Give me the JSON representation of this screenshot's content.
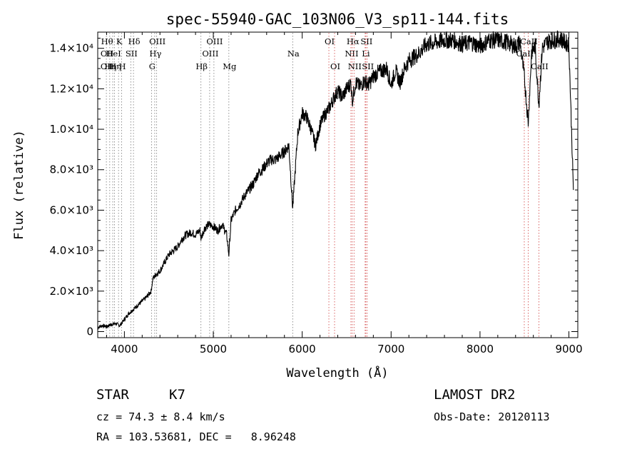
{
  "chart_data": {
    "type": "line",
    "title": "spec-55940-GAC_103N06_V3_sp11-144.fits",
    "xlabel": "Wavelength (Å)",
    "ylabel": "Flux (relative)",
    "xlim": [
      3700,
      9100
    ],
    "ylim": [
      -300,
      14800
    ],
    "x_ticks": [
      {
        "value": 4000,
        "label": "4000"
      },
      {
        "value": 5000,
        "label": "5000"
      },
      {
        "value": 6000,
        "label": "6000"
      },
      {
        "value": 7000,
        "label": "7000"
      },
      {
        "value": 8000,
        "label": "8000"
      },
      {
        "value": 9000,
        "label": "9000"
      }
    ],
    "y_ticks": [
      {
        "value": 0,
        "label": "0"
      },
      {
        "value": 2000,
        "label": "2.0×10³"
      },
      {
        "value": 4000,
        "label": "4.0×10³"
      },
      {
        "value": 6000,
        "label": "6.0×10³"
      },
      {
        "value": 8000,
        "label": "8.0×10³"
      },
      {
        "value": 10000,
        "label": "1.0×10⁴"
      },
      {
        "value": 12000,
        "label": "1.2×10⁴"
      },
      {
        "value": 14000,
        "label": "1.4×10⁴"
      }
    ],
    "grid": false,
    "series": [
      {
        "x": [
          3700,
          3750,
          3800,
          3850,
          3900,
          3950,
          4000,
          4050,
          4100,
          4150,
          4200,
          4250,
          4300,
          4320,
          4350,
          4400,
          4450,
          4500,
          4550,
          4600,
          4650,
          4700,
          4750,
          4800,
          4850,
          4861,
          4900,
          4950,
          5000,
          5050,
          5100,
          5150,
          5175,
          5200,
          5250,
          5300,
          5350,
          5400,
          5450,
          5500,
          5550,
          5600,
          5650,
          5700,
          5750,
          5800,
          5850,
          5893,
          5950,
          6000,
          6050,
          6100,
          6150,
          6200,
          6250,
          6300,
          6350,
          6400,
          6450,
          6500,
          6550,
          6563,
          6600,
          6650,
          6700,
          6750,
          6800,
          6850,
          6900,
          6950,
          7000,
          7050,
          7100,
          7150,
          7200,
          7300,
          7400,
          7500,
          7600,
          7700,
          7800,
          7900,
          8000,
          8100,
          8200,
          8300,
          8400,
          8450,
          8498,
          8542,
          8580,
          8620,
          8662,
          8700,
          8750,
          8800,
          8850,
          8900,
          8950,
          9000,
          9050
        ],
        "y": [
          200,
          300,
          250,
          350,
          400,
          300,
          600,
          900,
          1100,
          1300,
          1500,
          1700,
          2000,
          2600,
          2800,
          3000,
          3400,
          3800,
          4000,
          4200,
          4600,
          4800,
          4900,
          4800,
          5000,
          4600,
          5100,
          5300,
          5200,
          5000,
          5300,
          4800,
          3800,
          5500,
          6000,
          6300,
          6700,
          7000,
          7300,
          7800,
          8000,
          8300,
          8500,
          8500,
          8700,
          8900,
          9200,
          6100,
          9800,
          10800,
          10600,
          10000,
          9200,
          10200,
          10700,
          11000,
          11500,
          11900,
          11600,
          12000,
          12300,
          11400,
          12300,
          12100,
          12400,
          12200,
          12600,
          12800,
          12900,
          13000,
          12200,
          12900,
          12300,
          13000,
          13400,
          13700,
          14200,
          14300,
          14400,
          14400,
          14200,
          14300,
          14100,
          14400,
          14400,
          14300,
          14100,
          14300,
          12600,
          10300,
          13800,
          14100,
          11200,
          14000,
          14300,
          14400,
          14400,
          14500,
          14300,
          14200,
          7000
        ]
      }
    ],
    "line_marks": [
      {
        "x": 3797,
        "top": "Hθ",
        "mid": "OII",
        "bot": "OII"
      },
      {
        "x": 3835,
        "top": "",
        "mid": "",
        "bot": "Hη"
      },
      {
        "x": 3869,
        "top": "",
        "mid": "HeI",
        "bot": ""
      },
      {
        "x": 3889,
        "top": "",
        "mid": "",
        "bot": "Hη"
      },
      {
        "x": 3934,
        "top": "K",
        "mid": "",
        "bot": ""
      },
      {
        "x": 3969,
        "top": "",
        "mid": "",
        "bot": "H"
      },
      {
        "x": 4072,
        "top": "",
        "mid": "SII",
        "bot": ""
      },
      {
        "x": 4102,
        "top": "Hδ",
        "mid": "",
        "bot": ""
      },
      {
        "x": 4305,
        "top": "",
        "mid": "",
        "bot": "G"
      },
      {
        "x": 4341,
        "top": "",
        "mid": "Hγ",
        "bot": ""
      },
      {
        "x": 4363,
        "top": "OIII",
        "mid": "",
        "bot": ""
      },
      {
        "x": 4861,
        "top": "",
        "mid": "",
        "bot": "Hβ"
      },
      {
        "x": 4959,
        "top": "",
        "mid": "OIII",
        "bot": ""
      },
      {
        "x": 5007,
        "top": "OIII",
        "mid": "",
        "bot": ""
      },
      {
        "x": 5175,
        "top": "",
        "mid": "",
        "bot": "Mg"
      },
      {
        "x": 5893,
        "top": "",
        "mid": "Na",
        "bot": ""
      },
      {
        "x": 6300,
        "top": "OI",
        "mid": "",
        "bot": ""
      },
      {
        "x": 6364,
        "top": "",
        "mid": "",
        "bot": "OI"
      },
      {
        "x": 6548,
        "top": "",
        "mid": "NII",
        "bot": ""
      },
      {
        "x": 6563,
        "top": "Hα",
        "mid": "",
        "bot": ""
      },
      {
        "x": 6583,
        "top": "",
        "mid": "",
        "bot": "NII"
      },
      {
        "x": 6708,
        "top": "",
        "mid": "Li",
        "bot": ""
      },
      {
        "x": 6716,
        "top": "SII",
        "mid": "",
        "bot": ""
      },
      {
        "x": 6731,
        "top": "",
        "mid": "",
        "bot": "SII"
      },
      {
        "x": 8498,
        "top": "",
        "mid": "CaII",
        "bot": ""
      },
      {
        "x": 8542,
        "top": "CaII",
        "mid": "",
        "bot": ""
      },
      {
        "x": 8662,
        "top": "",
        "mid": "",
        "bot": "CaII"
      }
    ]
  },
  "info": {
    "object_type": "STAR",
    "subclass": "K7",
    "survey": "LAMOST DR2",
    "cz": "cz = 74.3 ± 8.4 km/s",
    "obs_date": "Obs-Date: 20120113",
    "coords": "RA = 103.53681, DEC =   8.96248"
  }
}
